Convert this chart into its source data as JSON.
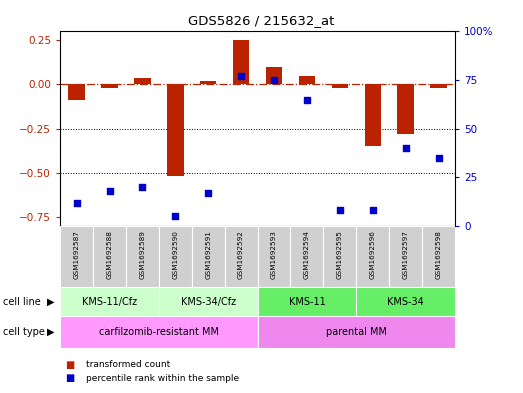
{
  "title": "GDS5826 / 215632_at",
  "samples": [
    "GSM1692587",
    "GSM1692588",
    "GSM1692589",
    "GSM1692590",
    "GSM1692591",
    "GSM1692592",
    "GSM1692593",
    "GSM1692594",
    "GSM1692595",
    "GSM1692596",
    "GSM1692597",
    "GSM1692598"
  ],
  "transformed_count": [
    -0.09,
    -0.02,
    0.035,
    -0.52,
    0.02,
    0.25,
    0.1,
    0.05,
    -0.02,
    -0.35,
    -0.28,
    -0.02
  ],
  "percentile_rank_pct": [
    12,
    18,
    20,
    5,
    17,
    77,
    75,
    65,
    8,
    8,
    40,
    35
  ],
  "cell_line_groups": [
    {
      "label": "KMS-11/Cfz",
      "start": 0,
      "end": 3,
      "color": "#ccffcc"
    },
    {
      "label": "KMS-34/Cfz",
      "start": 3,
      "end": 6,
      "color": "#ccffcc"
    },
    {
      "label": "KMS-11",
      "start": 6,
      "end": 9,
      "color": "#66ee66"
    },
    {
      "label": "KMS-34",
      "start": 9,
      "end": 12,
      "color": "#66ee66"
    }
  ],
  "cell_type_groups": [
    {
      "label": "carfilzomib-resistant MM",
      "start": 0,
      "end": 6,
      "color": "#ff99ff"
    },
    {
      "label": "parental MM",
      "start": 6,
      "end": 12,
      "color": "#ee88ee"
    }
  ],
  "ylim_left": [
    -0.8,
    0.3
  ],
  "ylim_right": [
    0,
    100
  ],
  "yticks_left": [
    -0.75,
    -0.5,
    -0.25,
    0.0,
    0.25
  ],
  "yticks_right": [
    0,
    25,
    50,
    75,
    100
  ],
  "bar_color": "#bb2200",
  "dot_color": "#0000cc",
  "legend_items": [
    {
      "label": "transformed count",
      "color": "#bb2200"
    },
    {
      "label": "percentile rank within the sample",
      "color": "#0000cc"
    }
  ]
}
